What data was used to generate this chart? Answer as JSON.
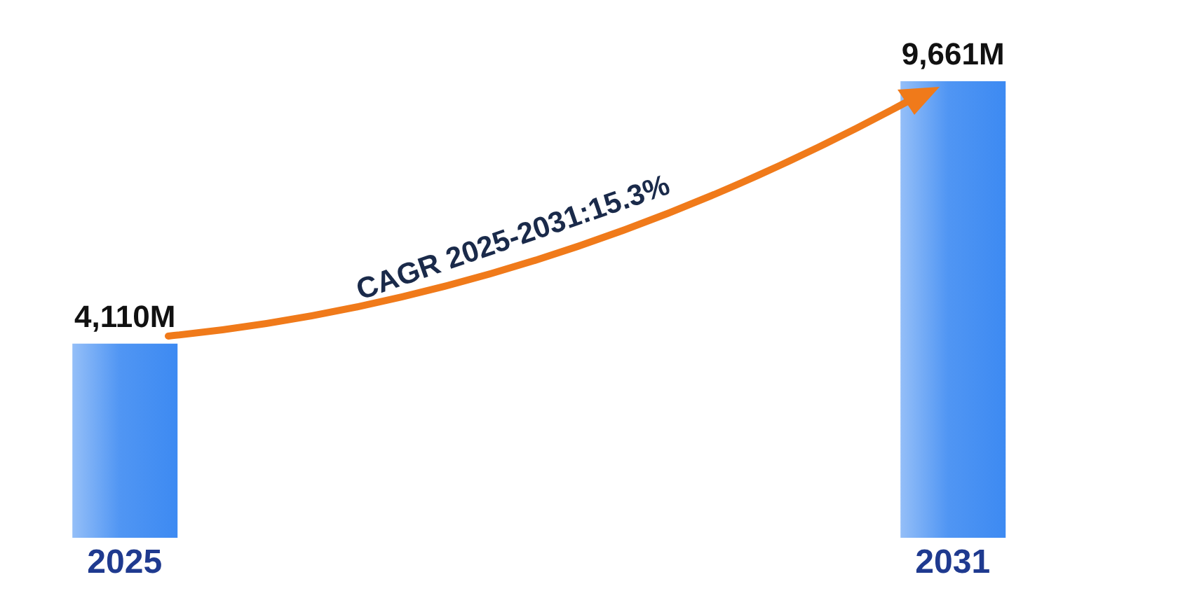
{
  "chart_data": {
    "type": "bar",
    "categories": [
      "2025",
      "2031"
    ],
    "values": [
      4110,
      9661
    ],
    "value_labels": [
      "4,110M",
      "9,661M"
    ],
    "color": "#3d8af2",
    "annotations": [
      "CAGR 2025-2031:15.3%"
    ]
  }
}
